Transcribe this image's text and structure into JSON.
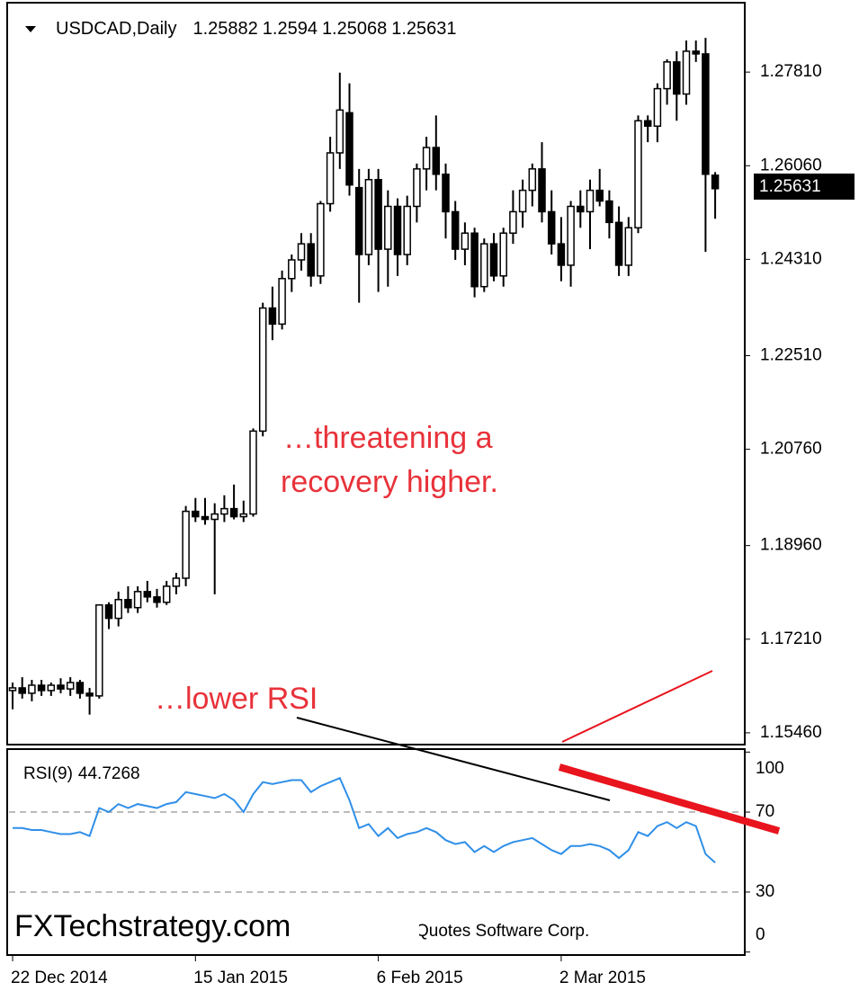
{
  "chart_data": [
    {
      "type": "candlestick",
      "title": "USDCAD,Daily",
      "categories": [
        "22 Dec 2014",
        null,
        null,
        null,
        null,
        null,
        null,
        null,
        null,
        null,
        null,
        null,
        null,
        null,
        null,
        null,
        null,
        null,
        null,
        "15 Jan 2015",
        null,
        null,
        null,
        null,
        null,
        null,
        null,
        null,
        null,
        null,
        null,
        null,
        null,
        null,
        null,
        null,
        null,
        null,
        "6 Feb 2015",
        null,
        null,
        null,
        null,
        null,
        null,
        null,
        null,
        null,
        null,
        null,
        null,
        null,
        null,
        null,
        null,
        null,
        null,
        "2 Mar 2015",
        null,
        null,
        null,
        null,
        null,
        null,
        null,
        null,
        null,
        null,
        null,
        null,
        null,
        null,
        null,
        null
      ],
      "open": [
        1.1625,
        1.163,
        1.162,
        1.1635,
        1.1625,
        1.1635,
        1.1628,
        1.164,
        1.162,
        1.1615,
        1.1785,
        1.176,
        1.1795,
        1.178,
        1.181,
        1.18,
        1.179,
        1.182,
        1.1835,
        1.196,
        1.195,
        1.1945,
        1.1955,
        1.1965,
        1.195,
        1.1955,
        1.211,
        1.234,
        1.231,
        1.2395,
        1.243,
        1.246,
        1.24,
        1.2535,
        1.263,
        1.2705,
        1.2565,
        1.244,
        1.258,
        1.245,
        1.253,
        1.244,
        1.253,
        1.26,
        1.264,
        1.259,
        1.252,
        1.245,
        1.248,
        1.238,
        1.246,
        1.24,
        1.248,
        1.252,
        1.256,
        1.26,
        1.252,
        1.246,
        1.242,
        1.253,
        1.252,
        1.256,
        1.254,
        1.25,
        1.242,
        1.249,
        1.269,
        1.268,
        1.275,
        1.28,
        1.274,
        1.282,
        1.2815,
        1.25882
      ],
      "high": [
        1.164,
        1.165,
        1.1645,
        1.1645,
        1.164,
        1.1648,
        1.165,
        1.1645,
        1.163,
        1.1785,
        1.179,
        1.181,
        1.182,
        1.182,
        1.183,
        1.1815,
        1.183,
        1.1845,
        1.197,
        1.1985,
        1.1985,
        1.1975,
        1.199,
        1.201,
        1.198,
        1.2115,
        1.235,
        1.238,
        1.241,
        1.244,
        1.248,
        1.248,
        1.254,
        1.266,
        1.278,
        1.276,
        1.26,
        1.26,
        1.26,
        1.256,
        1.2545,
        1.255,
        1.261,
        1.266,
        1.27,
        1.261,
        1.254,
        1.25,
        1.249,
        1.247,
        1.248,
        1.249,
        1.256,
        1.258,
        1.261,
        1.265,
        1.256,
        1.251,
        1.254,
        1.256,
        1.258,
        1.26,
        1.256,
        1.253,
        1.251,
        1.27,
        1.27,
        1.276,
        1.2805,
        1.282,
        1.284,
        1.284,
        1.2845,
        1.2594
      ],
      "low": [
        1.159,
        1.161,
        1.1605,
        1.1615,
        1.1615,
        1.162,
        1.1615,
        1.161,
        1.158,
        1.161,
        1.174,
        1.1745,
        1.177,
        1.177,
        1.179,
        1.178,
        1.1785,
        1.1805,
        1.182,
        1.194,
        1.1935,
        1.1805,
        1.194,
        1.1945,
        1.194,
        1.195,
        1.21,
        1.228,
        1.23,
        1.237,
        1.241,
        1.238,
        1.2385,
        1.252,
        1.26,
        1.255,
        1.235,
        1.242,
        1.237,
        1.238,
        1.24,
        1.242,
        1.25,
        1.256,
        1.256,
        1.247,
        1.243,
        1.242,
        1.236,
        1.237,
        1.239,
        1.238,
        1.246,
        1.249,
        1.253,
        1.25,
        1.244,
        1.239,
        1.238,
        1.249,
        1.245,
        1.253,
        1.247,
        1.24,
        1.24,
        1.248,
        1.265,
        1.265,
        1.272,
        1.269,
        1.272,
        1.28,
        1.2445,
        1.25068
      ],
      "close": [
        1.163,
        1.162,
        1.1635,
        1.1625,
        1.1635,
        1.1628,
        1.164,
        1.162,
        1.1615,
        1.1785,
        1.176,
        1.1795,
        1.178,
        1.181,
        1.18,
        1.179,
        1.182,
        1.1835,
        1.196,
        1.195,
        1.1945,
        1.1955,
        1.1965,
        1.195,
        1.1955,
        1.211,
        1.234,
        1.231,
        1.2395,
        1.243,
        1.246,
        1.24,
        1.2535,
        1.263,
        1.271,
        1.257,
        1.244,
        1.258,
        1.245,
        1.253,
        1.244,
        1.253,
        1.26,
        1.264,
        1.259,
        1.252,
        1.245,
        1.248,
        1.238,
        1.246,
        1.24,
        1.248,
        1.252,
        1.256,
        1.26,
        1.252,
        1.246,
        1.242,
        1.253,
        1.252,
        1.256,
        1.254,
        1.25,
        1.242,
        1.249,
        1.269,
        1.268,
        1.275,
        1.28,
        1.274,
        1.282,
        1.2815,
        1.259,
        1.25631
      ],
      "ylim": [
        1.1524,
        1.2909
      ],
      "yticks": [
        {
          "value": 1.1546,
          "label": "1.15460"
        },
        {
          "value": 1.1721,
          "label": "1.17210"
        },
        {
          "value": 1.1896,
          "label": "1.18960"
        },
        {
          "value": 1.2076,
          "label": "1.20760"
        },
        {
          "value": 1.2251,
          "label": "1.22510"
        },
        {
          "value": 1.2431,
          "label": "1.24310"
        },
        {
          "value": 1.2606,
          "label": "1.26060"
        },
        {
          "value": 1.2781,
          "label": "1.27810"
        }
      ],
      "annotations": [
        "…threatening a",
        "recovery higher.",
        "…lower RSI"
      ]
    },
    {
      "type": "line",
      "series": [
        {
          "name": "RSI(9)",
          "color": "#2f8fe8",
          "values": [
            62,
            62,
            61,
            61,
            60,
            59,
            59,
            60,
            58,
            72,
            70,
            74,
            72,
            74,
            73,
            72,
            74,
            75,
            80,
            79,
            78,
            77,
            79,
            76,
            70,
            79,
            85,
            84,
            85,
            86,
            86,
            80,
            83,
            85,
            87,
            76,
            62,
            64,
            58,
            62,
            57,
            59,
            60,
            62,
            60,
            56,
            54,
            55,
            50,
            53,
            50,
            53,
            55,
            56,
            57,
            54,
            51,
            49,
            53,
            53,
            54,
            53,
            51,
            47,
            51,
            60,
            58,
            63,
            65,
            62,
            65,
            63,
            49,
            44.7268
          ]
        }
      ],
      "ylim": [
        -1.5,
        101.5
      ],
      "yticks": [
        0,
        30,
        70,
        100
      ],
      "levels": [
        30,
        70
      ]
    }
  ],
  "watermark": "FXTechstrategy.com",
  "copyright": "Quotes Software Corp."
}
